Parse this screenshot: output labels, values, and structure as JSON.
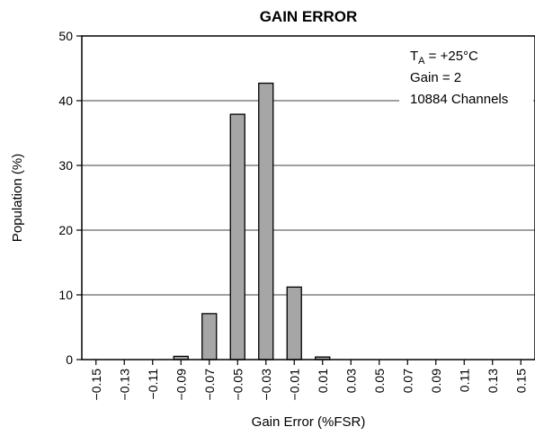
{
  "chart_data": {
    "type": "bar",
    "title": "GAIN ERROR",
    "xlabel": "Gain Error (%FSR)",
    "ylabel": "Population (%)",
    "ylim": [
      0,
      50
    ],
    "yticks": [
      "0",
      "10",
      "20",
      "30",
      "40",
      "50"
    ],
    "grid": true,
    "categories": [
      "−0.15",
      "−0.13",
      "−0.11",
      "−0.09",
      "−0.07",
      "−0.05",
      "−0.03",
      "−0.01",
      "0.01",
      "0.03",
      "0.05",
      "0.07",
      "0.09",
      "0.11",
      "0.13",
      "0.15"
    ],
    "values": [
      0,
      0,
      0,
      0.5,
      7.1,
      37.9,
      42.7,
      11.2,
      0.4,
      0,
      0,
      0,
      0,
      0,
      0,
      0
    ],
    "bar_color": "#a6a6a6",
    "annotations": {
      "temp_prefix": "T",
      "temp_sub": "A",
      "temp_suffix": " = +25°C",
      "gain": "Gain = 2",
      "channels": "10884 Channels"
    }
  }
}
